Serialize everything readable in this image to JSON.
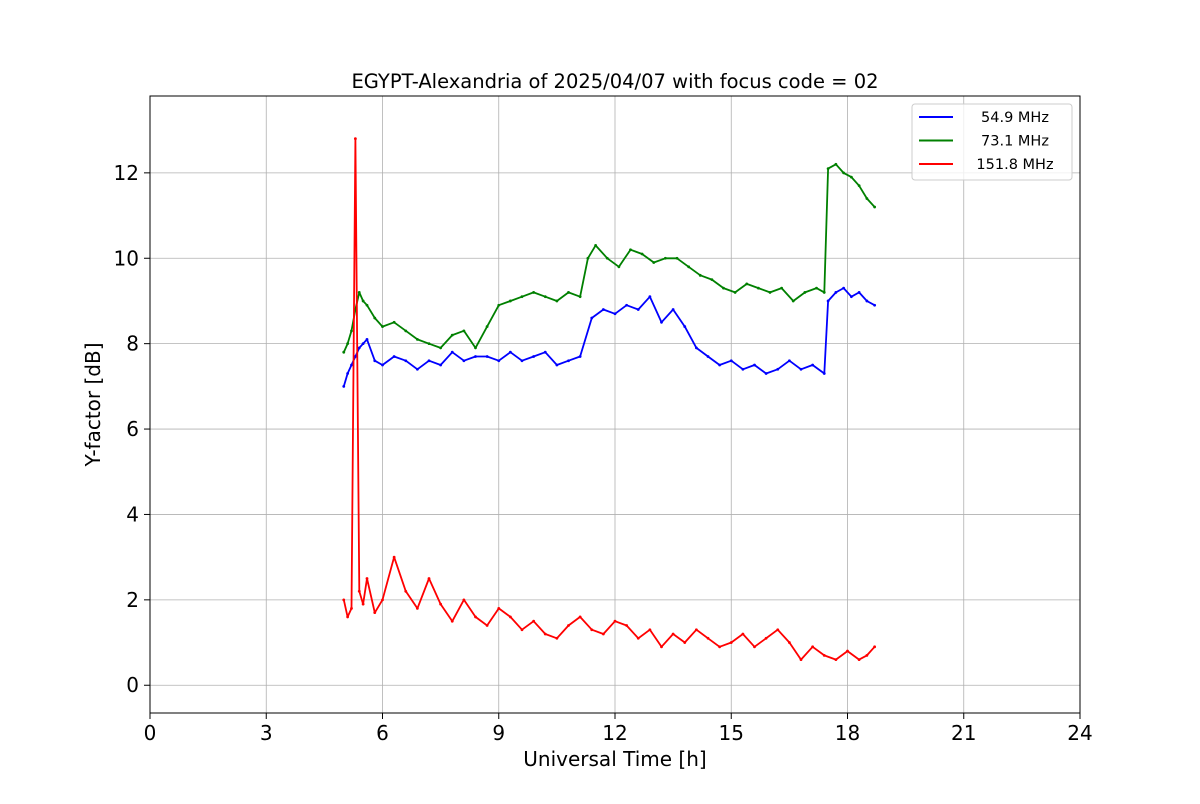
{
  "chart_data": {
    "type": "line",
    "title": "EGYPT-Alexandria of 2025/04/07 with focus code = 02",
    "xlabel": "Universal Time [h]",
    "ylabel": "Y-factor [dB]",
    "xlim": [
      0,
      24
    ],
    "ylim": [
      -0.65,
      13.8
    ],
    "xticks": [
      0,
      3,
      6,
      9,
      12,
      15,
      18,
      21,
      24
    ],
    "xtick_labels": [
      "0",
      "3",
      "6",
      "9",
      "12",
      "15",
      "18",
      "21",
      "24"
    ],
    "yticks": [
      0,
      2,
      4,
      6,
      8,
      10,
      12
    ],
    "ytick_labels": [
      "0",
      "2",
      "4",
      "6",
      "8",
      "10",
      "12"
    ],
    "grid": true,
    "legend_position": "top-right",
    "series": [
      {
        "name": "54.9 MHz",
        "color": "#0000ff",
        "x": [
          5.0,
          5.1,
          5.2,
          5.3,
          5.4,
          5.5,
          5.6,
          5.8,
          6.0,
          6.3,
          6.6,
          6.9,
          7.2,
          7.5,
          7.8,
          8.1,
          8.4,
          8.7,
          9.0,
          9.3,
          9.6,
          9.9,
          10.2,
          10.5,
          10.8,
          11.1,
          11.4,
          11.7,
          12.0,
          12.3,
          12.6,
          12.9,
          13.2,
          13.5,
          13.8,
          14.1,
          14.4,
          14.7,
          15.0,
          15.3,
          15.6,
          15.9,
          16.2,
          16.5,
          16.8,
          17.1,
          17.4,
          17.5,
          17.7,
          17.9,
          18.1,
          18.3,
          18.5,
          18.7
        ],
        "values": [
          7.0,
          7.3,
          7.5,
          7.7,
          7.9,
          8.0,
          8.1,
          7.6,
          7.5,
          7.7,
          7.6,
          7.4,
          7.6,
          7.5,
          7.8,
          7.6,
          7.7,
          7.7,
          7.6,
          7.8,
          7.6,
          7.7,
          7.8,
          7.5,
          7.6,
          7.7,
          8.6,
          8.8,
          8.7,
          8.9,
          8.8,
          9.1,
          8.5,
          8.8,
          8.4,
          7.9,
          7.7,
          7.5,
          7.6,
          7.4,
          7.5,
          7.3,
          7.4,
          7.6,
          7.4,
          7.5,
          7.3,
          9.0,
          9.2,
          9.3,
          9.1,
          9.2,
          9.0,
          8.9
        ]
      },
      {
        "name": "73.1 MHz",
        "color": "#008000",
        "x": [
          5.0,
          5.1,
          5.2,
          5.3,
          5.4,
          5.5,
          5.6,
          5.8,
          6.0,
          6.3,
          6.6,
          6.9,
          7.2,
          7.5,
          7.8,
          8.1,
          8.4,
          8.7,
          9.0,
          9.3,
          9.6,
          9.9,
          10.2,
          10.5,
          10.8,
          11.1,
          11.3,
          11.5,
          11.8,
          12.1,
          12.4,
          12.7,
          13.0,
          13.3,
          13.6,
          13.9,
          14.2,
          14.5,
          14.8,
          15.1,
          15.4,
          15.7,
          16.0,
          16.3,
          16.6,
          16.9,
          17.2,
          17.4,
          17.5,
          17.7,
          17.9,
          18.1,
          18.3,
          18.5,
          18.7
        ],
        "values": [
          7.8,
          8.0,
          8.3,
          8.8,
          9.2,
          9.0,
          8.9,
          8.6,
          8.4,
          8.5,
          8.3,
          8.1,
          8.0,
          7.9,
          8.2,
          8.3,
          7.9,
          8.4,
          8.9,
          9.0,
          9.1,
          9.2,
          9.1,
          9.0,
          9.2,
          9.1,
          10.0,
          10.3,
          10.0,
          9.8,
          10.2,
          10.1,
          9.9,
          10.0,
          10.0,
          9.8,
          9.6,
          9.5,
          9.3,
          9.2,
          9.4,
          9.3,
          9.2,
          9.3,
          9.0,
          9.2,
          9.3,
          9.2,
          12.1,
          12.2,
          12.0,
          11.9,
          11.7,
          11.4,
          11.2
        ]
      },
      {
        "name": "151.8 MHz",
        "color": "#ff0000",
        "x": [
          5.0,
          5.1,
          5.2,
          5.3,
          5.4,
          5.5,
          5.6,
          5.8,
          6.0,
          6.3,
          6.6,
          6.9,
          7.2,
          7.5,
          7.8,
          8.1,
          8.4,
          8.7,
          9.0,
          9.3,
          9.6,
          9.9,
          10.2,
          10.5,
          10.8,
          11.1,
          11.4,
          11.7,
          12.0,
          12.3,
          12.6,
          12.9,
          13.2,
          13.5,
          13.8,
          14.1,
          14.4,
          14.7,
          15.0,
          15.3,
          15.6,
          15.9,
          16.2,
          16.5,
          16.8,
          17.1,
          17.4,
          17.7,
          18.0,
          18.3,
          18.5,
          18.7
        ],
        "values": [
          2.0,
          1.6,
          1.8,
          12.8,
          2.2,
          1.9,
          2.5,
          1.7,
          2.0,
          3.0,
          2.2,
          1.8,
          2.5,
          1.9,
          1.5,
          2.0,
          1.6,
          1.4,
          1.8,
          1.6,
          1.3,
          1.5,
          1.2,
          1.1,
          1.4,
          1.6,
          1.3,
          1.2,
          1.5,
          1.4,
          1.1,
          1.3,
          0.9,
          1.2,
          1.0,
          1.3,
          1.1,
          0.9,
          1.0,
          1.2,
          0.9,
          1.1,
          1.3,
          1.0,
          0.6,
          0.9,
          0.7,
          0.6,
          0.8,
          0.6,
          0.7,
          0.9
        ]
      }
    ]
  }
}
